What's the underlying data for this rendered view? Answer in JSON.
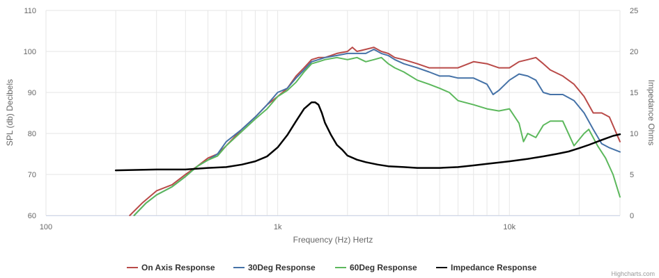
{
  "chart_data": {
    "type": "line",
    "xlabel": "Frequency (Hz) Hertz",
    "ylabel": "SPL (db) Decibels",
    "y2label": "Impedance Ohms",
    "x_scale": "log",
    "xlim": [
      100,
      30000
    ],
    "ylim": [
      60,
      110
    ],
    "y2lim": [
      0,
      25
    ],
    "x_ticks": [
      100,
      1000,
      10000
    ],
    "x_tick_labels": [
      "100",
      "1k",
      "10k"
    ],
    "y_ticks": [
      60,
      70,
      80,
      90,
      100,
      110
    ],
    "y_tick_labels": [
      "60",
      "70",
      "80",
      "90",
      "100",
      "110"
    ],
    "y2_ticks": [
      0,
      5,
      10,
      15,
      20,
      25
    ],
    "y2_tick_labels": [
      "0",
      "5",
      "10",
      "15",
      "20",
      "25"
    ],
    "grid": true,
    "legend_position": "bottom",
    "series": [
      {
        "name": "On Axis Response",
        "color": "#b94a48",
        "axis": "left",
        "x": [
          230,
          260,
          300,
          350,
          400,
          450,
          500,
          550,
          600,
          700,
          800,
          900,
          1000,
          1100,
          1200,
          1300,
          1400,
          1500,
          1600,
          1800,
          2000,
          2100,
          2200,
          2400,
          2600,
          2800,
          3000,
          3200,
          3500,
          4000,
          4500,
          5000,
          5500,
          6000,
          7000,
          8000,
          9000,
          10000,
          11000,
          12000,
          13000,
          14000,
          15000,
          17000,
          19000,
          21000,
          23000,
          25000,
          27000,
          30000
        ],
        "y": [
          60,
          63,
          66,
          67.5,
          70,
          72,
          74,
          75,
          77,
          81,
          84,
          87,
          89,
          91,
          94,
          96,
          98,
          98.5,
          98.5,
          99.5,
          100,
          101,
          100,
          100.5,
          101,
          100,
          99.5,
          98.5,
          98,
          97,
          96,
          96,
          96,
          96,
          97.5,
          97,
          96,
          96,
          97.5,
          98,
          98.5,
          97,
          95.5,
          94,
          92,
          89,
          85,
          85,
          84,
          78
        ]
      },
      {
        "name": "30Deg Response",
        "color": "#4572a7",
        "axis": "left",
        "x": [
          240,
          270,
          300,
          350,
          400,
          450,
          500,
          550,
          600,
          700,
          800,
          900,
          1000,
          1100,
          1200,
          1300,
          1400,
          1500,
          1600,
          1800,
          2000,
          2200,
          2400,
          2600,
          2800,
          3000,
          3200,
          3500,
          4000,
          4500,
          5000,
          5500,
          6000,
          7000,
          8000,
          8500,
          9000,
          10000,
          11000,
          12000,
          13000,
          14000,
          15000,
          17000,
          19000,
          21000,
          23000,
          25000,
          27000,
          30000
        ],
        "y": [
          60,
          63,
          65,
          67,
          69.5,
          72,
          73.5,
          75,
          78,
          81,
          84,
          87,
          90,
          91,
          93.5,
          95.5,
          97.5,
          98,
          98.5,
          99,
          99.5,
          99.5,
          99.5,
          100.5,
          99.5,
          99,
          98,
          97,
          96,
          95,
          94,
          94,
          93.5,
          93.5,
          92,
          89.5,
          90.5,
          93,
          94.5,
          94,
          93,
          90,
          89.5,
          89.5,
          88,
          85,
          81,
          77.5,
          76.5,
          75.5
        ]
      },
      {
        "name": "60Deg Response",
        "color": "#5cb85c",
        "axis": "left",
        "x": [
          240,
          270,
          300,
          350,
          400,
          450,
          500,
          550,
          600,
          700,
          800,
          900,
          1000,
          1100,
          1200,
          1300,
          1400,
          1500,
          1600,
          1800,
          2000,
          2200,
          2400,
          2600,
          2800,
          3000,
          3200,
          3500,
          4000,
          4500,
          5000,
          5500,
          6000,
          7000,
          8000,
          9000,
          10000,
          11000,
          11500,
          12000,
          13000,
          14000,
          15000,
          17000,
          19000,
          21000,
          22000,
          24000,
          26000,
          28000,
          30000
        ],
        "y": [
          60,
          63,
          65,
          67,
          69.5,
          72,
          73.5,
          74.5,
          77,
          80.5,
          83.5,
          86,
          89,
          90.5,
          92.5,
          95,
          97,
          97.5,
          98,
          98.5,
          98,
          98.5,
          97.5,
          98,
          98.5,
          97,
          96,
          95,
          93,
          92,
          91,
          90,
          88,
          87,
          86,
          85.5,
          86,
          82.5,
          78,
          80,
          79,
          82,
          83,
          83,
          77,
          80,
          81,
          77,
          74,
          70,
          64.5
        ]
      },
      {
        "name": "Impedance Response",
        "color": "#000000",
        "axis": "right",
        "x": [
          200,
          300,
          400,
          500,
          600,
          700,
          800,
          900,
          1000,
          1100,
          1200,
          1300,
          1400,
          1450,
          1500,
          1550,
          1600,
          1700,
          1800,
          1900,
          2000,
          2200,
          2400,
          2700,
          3000,
          3500,
          4000,
          5000,
          6000,
          7000,
          8000,
          10000,
          12000,
          14000,
          16000,
          18000,
          20000,
          22000,
          25000,
          28000,
          30000
        ],
        "y": [
          5.5,
          5.6,
          5.6,
          5.8,
          5.9,
          6.2,
          6.6,
          7.2,
          8.3,
          9.8,
          11.5,
          13,
          13.8,
          13.8,
          13.5,
          12.5,
          11.3,
          9.8,
          8.6,
          8,
          7.3,
          6.8,
          6.5,
          6.2,
          6,
          5.9,
          5.8,
          5.8,
          5.9,
          6.1,
          6.3,
          6.6,
          6.9,
          7.2,
          7.5,
          7.8,
          8.2,
          8.6,
          9.2,
          9.7,
          9.9
        ]
      }
    ]
  },
  "credit": "Highcharts.com"
}
